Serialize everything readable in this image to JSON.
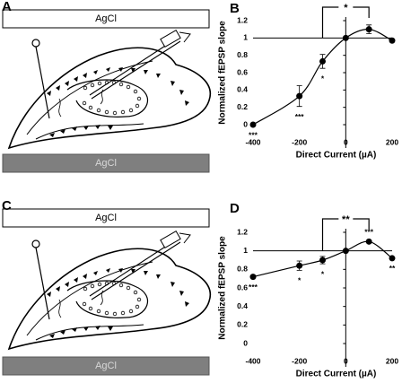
{
  "panel_labels": [
    "A",
    "B",
    "C",
    "D"
  ],
  "diagrams": [
    {
      "top_electrode": "AgCl",
      "bottom_electrode": "AgCl"
    },
    {
      "top_electrode": "AgCl",
      "bottom_electrode": "AgCl"
    }
  ],
  "chart_data": [
    {
      "type": "line",
      "y_label": "Normalized fEPSP slope",
      "x_label": "Direct Current (µA)",
      "x": [
        -400,
        -200,
        -100,
        0,
        100,
        200
      ],
      "values": [
        0,
        0.33,
        0.73,
        1,
        1.1,
        0.97
      ],
      "errors": [
        null,
        0.12,
        0.08,
        null,
        0.05,
        null
      ],
      "annotations": [
        "***",
        "***",
        "*",
        null,
        null,
        null
      ],
      "bracket": {
        "label": "*",
        "from": -100,
        "to": 100
      },
      "xlim": [
        -400,
        200
      ],
      "xticks": [
        -400,
        -200,
        0,
        200
      ],
      "ylim": [
        0,
        1.2
      ],
      "yticks": [
        0,
        0.2,
        0.4,
        0.6,
        0.8,
        1,
        1.2
      ],
      "color": "#000000"
    },
    {
      "type": "line",
      "y_label": "Normalized fEPSP slope",
      "x_label": "Direct Current (µA)",
      "x": [
        -400,
        -200,
        -100,
        0,
        100,
        200
      ],
      "values": [
        0.72,
        0.84,
        0.9,
        1,
        1.1,
        0.92
      ],
      "errors": [
        null,
        0.05,
        0.04,
        null,
        null,
        null
      ],
      "annotations": [
        "***",
        "*",
        "*",
        null,
        "***",
        "**"
      ],
      "bracket": {
        "label": "**",
        "from": -100,
        "to": 100
      },
      "xlim": [
        -400,
        200
      ],
      "xticks": [
        -400,
        -200,
        0,
        200
      ],
      "ylim": [
        0,
        1.2
      ],
      "yticks": [
        0,
        0.2,
        0.4,
        0.6,
        0.8,
        1,
        1.2
      ],
      "color": "#000000"
    }
  ]
}
